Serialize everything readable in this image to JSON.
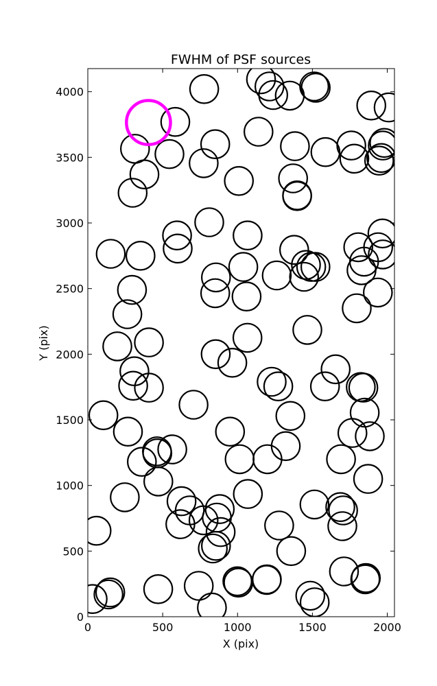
{
  "chart_data": {
    "type": "scatter",
    "title": "FWHM of PSF sources",
    "xlabel": "X (pix)",
    "ylabel": "Y (pix)",
    "xlim": [
      0,
      2048
    ],
    "ylim": [
      0,
      4176
    ],
    "xticks": [
      0,
      500,
      1000,
      1500,
      2000
    ],
    "yticks": [
      0,
      500,
      1000,
      1500,
      2000,
      2500,
      3000,
      3500,
      4000
    ],
    "marker": "open-circle",
    "marker_radius_pix": 95,
    "colors": {
      "default": "#000000",
      "highlight": "#ff00ff"
    },
    "highlighted_point": {
      "x": 405,
      "y": 3765
    },
    "points": [
      {
        "x": 777,
        "y": 4020
      },
      {
        "x": 1157,
        "y": 4095
      },
      {
        "x": 1213,
        "y": 4040
      },
      {
        "x": 1238,
        "y": 3975
      },
      {
        "x": 1349,
        "y": 3970
      },
      {
        "x": 1512,
        "y": 4040
      },
      {
        "x": 1522,
        "y": 4030
      },
      {
        "x": 1893,
        "y": 3895
      },
      {
        "x": 2009,
        "y": 3880
      },
      {
        "x": 584,
        "y": 3770
      },
      {
        "x": 1140,
        "y": 3695
      },
      {
        "x": 315,
        "y": 3565
      },
      {
        "x": 545,
        "y": 3525
      },
      {
        "x": 851,
        "y": 3600
      },
      {
        "x": 1383,
        "y": 3585
      },
      {
        "x": 1587,
        "y": 3540
      },
      {
        "x": 1760,
        "y": 3590
      },
      {
        "x": 1780,
        "y": 3490
      },
      {
        "x": 1946,
        "y": 3475
      },
      {
        "x": 1960,
        "y": 3495
      },
      {
        "x": 1970,
        "y": 3590
      },
      {
        "x": 1980,
        "y": 3610
      },
      {
        "x": 774,
        "y": 3455
      },
      {
        "x": 378,
        "y": 3370
      },
      {
        "x": 1009,
        "y": 3320
      },
      {
        "x": 1371,
        "y": 3340
      },
      {
        "x": 1398,
        "y": 3205
      },
      {
        "x": 1398,
        "y": 3210
      },
      {
        "x": 299,
        "y": 3230
      },
      {
        "x": 811,
        "y": 3005
      },
      {
        "x": 596,
        "y": 2905
      },
      {
        "x": 1067,
        "y": 2905
      },
      {
        "x": 1968,
        "y": 2920
      },
      {
        "x": 600,
        "y": 2805
      },
      {
        "x": 1378,
        "y": 2795
      },
      {
        "x": 1806,
        "y": 2815
      },
      {
        "x": 1939,
        "y": 2815
      },
      {
        "x": 1970,
        "y": 2760
      },
      {
        "x": 153,
        "y": 2765
      },
      {
        "x": 352,
        "y": 2750
      },
      {
        "x": 1845,
        "y": 2705
      },
      {
        "x": 1457,
        "y": 2680
      },
      {
        "x": 1492,
        "y": 2665
      },
      {
        "x": 1520,
        "y": 2665
      },
      {
        "x": 1038,
        "y": 2665
      },
      {
        "x": 1828,
        "y": 2640
      },
      {
        "x": 1262,
        "y": 2600
      },
      {
        "x": 856,
        "y": 2585
      },
      {
        "x": 1444,
        "y": 2590
      },
      {
        "x": 295,
        "y": 2490
      },
      {
        "x": 851,
        "y": 2465
      },
      {
        "x": 1937,
        "y": 2470
      },
      {
        "x": 1060,
        "y": 2440
      },
      {
        "x": 1796,
        "y": 2350
      },
      {
        "x": 264,
        "y": 2305
      },
      {
        "x": 1466,
        "y": 2185
      },
      {
        "x": 1066,
        "y": 2125
      },
      {
        "x": 408,
        "y": 2090
      },
      {
        "x": 197,
        "y": 2060
      },
      {
        "x": 854,
        "y": 2000
      },
      {
        "x": 965,
        "y": 1935
      },
      {
        "x": 1655,
        "y": 1885
      },
      {
        "x": 311,
        "y": 1870
      },
      {
        "x": 1228,
        "y": 1790
      },
      {
        "x": 1272,
        "y": 1755
      },
      {
        "x": 1584,
        "y": 1755
      },
      {
        "x": 303,
        "y": 1760
      },
      {
        "x": 408,
        "y": 1745
      },
      {
        "x": 1823,
        "y": 1750
      },
      {
        "x": 1840,
        "y": 1745
      },
      {
        "x": 706,
        "y": 1615
      },
      {
        "x": 104,
        "y": 1535
      },
      {
        "x": 1353,
        "y": 1530
      },
      {
        "x": 1849,
        "y": 1555
      },
      {
        "x": 950,
        "y": 1410
      },
      {
        "x": 268,
        "y": 1410
      },
      {
        "x": 1767,
        "y": 1400
      },
      {
        "x": 1883,
        "y": 1375
      },
      {
        "x": 1322,
        "y": 1300
      },
      {
        "x": 564,
        "y": 1275
      },
      {
        "x": 462,
        "y": 1260
      },
      {
        "x": 464,
        "y": 1245
      },
      {
        "x": 1200,
        "y": 1200
      },
      {
        "x": 1014,
        "y": 1200
      },
      {
        "x": 1691,
        "y": 1200
      },
      {
        "x": 361,
        "y": 1180
      },
      {
        "x": 471,
        "y": 1030
      },
      {
        "x": 1872,
        "y": 1050
      },
      {
        "x": 1069,
        "y": 935
      },
      {
        "x": 247,
        "y": 910
      },
      {
        "x": 1514,
        "y": 855
      },
      {
        "x": 626,
        "y": 880
      },
      {
        "x": 681,
        "y": 810
      },
      {
        "x": 881,
        "y": 820
      },
      {
        "x": 1686,
        "y": 835
      },
      {
        "x": 1705,
        "y": 810
      },
      {
        "x": 862,
        "y": 755
      },
      {
        "x": 618,
        "y": 705
      },
      {
        "x": 1278,
        "y": 695
      },
      {
        "x": 1700,
        "y": 690
      },
      {
        "x": 773,
        "y": 735
      },
      {
        "x": 58,
        "y": 655
      },
      {
        "x": 887,
        "y": 645
      },
      {
        "x": 835,
        "y": 520
      },
      {
        "x": 856,
        "y": 540
      },
      {
        "x": 1358,
        "y": 500
      },
      {
        "x": 1711,
        "y": 345
      },
      {
        "x": 1005,
        "y": 260
      },
      {
        "x": 1196,
        "y": 285
      },
      {
        "x": 1857,
        "y": 295
      },
      {
        "x": 1853,
        "y": 285
      },
      {
        "x": 741,
        "y": 235
      },
      {
        "x": 470,
        "y": 210
      },
      {
        "x": 999,
        "y": 270
      },
      {
        "x": 1194,
        "y": 280
      },
      {
        "x": 1486,
        "y": 160
      },
      {
        "x": 1515,
        "y": 110
      },
      {
        "x": 150,
        "y": 185
      },
      {
        "x": 138,
        "y": 170
      },
      {
        "x": 32,
        "y": 135
      },
      {
        "x": 829,
        "y": 70
      }
    ]
  }
}
